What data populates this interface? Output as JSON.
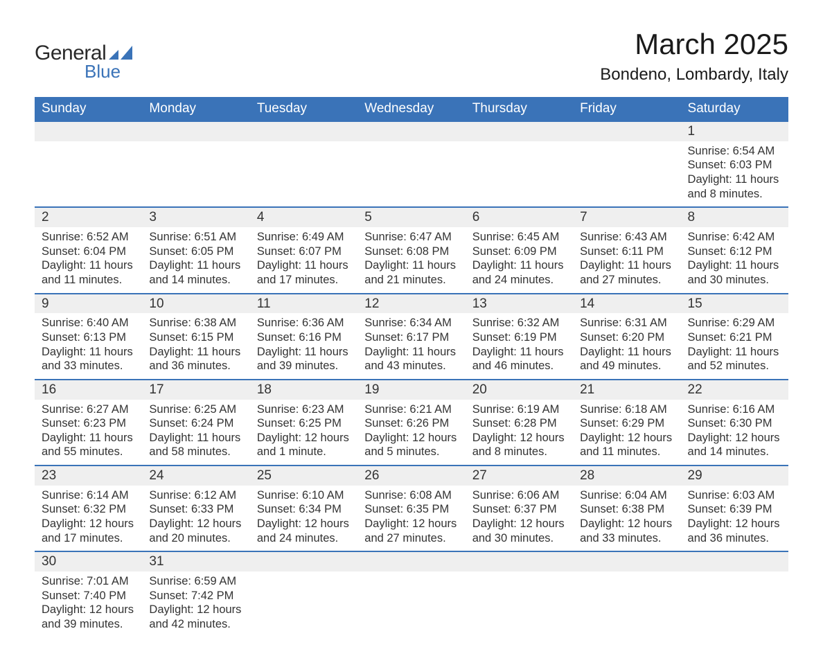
{
  "brand": {
    "word1": "General",
    "word2": "Blue",
    "color": "#3a73b8"
  },
  "title": "March 2025",
  "location": "Bondeno, Lombardy, Italy",
  "weekday_labels": [
    "Sunday",
    "Monday",
    "Tuesday",
    "Wednesday",
    "Thursday",
    "Friday",
    "Saturday"
  ],
  "style": {
    "header_bg": "#3a73b8",
    "header_fg": "#ffffff",
    "daynum_bg": "#efefef",
    "row_divider": "#3a73b8",
    "body_text": "#333333",
    "title_fontsize": 42,
    "location_fontsize": 24,
    "weekday_fontsize": 19,
    "cell_fontsize": 16.5
  },
  "weeks": [
    [
      null,
      null,
      null,
      null,
      null,
      null,
      {
        "n": "1",
        "sr": "Sunrise: 6:54 AM",
        "ss": "Sunset: 6:03 PM",
        "d1": "Daylight: 11 hours",
        "d2": "and 8 minutes."
      }
    ],
    [
      {
        "n": "2",
        "sr": "Sunrise: 6:52 AM",
        "ss": "Sunset: 6:04 PM",
        "d1": "Daylight: 11 hours",
        "d2": "and 11 minutes."
      },
      {
        "n": "3",
        "sr": "Sunrise: 6:51 AM",
        "ss": "Sunset: 6:05 PM",
        "d1": "Daylight: 11 hours",
        "d2": "and 14 minutes."
      },
      {
        "n": "4",
        "sr": "Sunrise: 6:49 AM",
        "ss": "Sunset: 6:07 PM",
        "d1": "Daylight: 11 hours",
        "d2": "and 17 minutes."
      },
      {
        "n": "5",
        "sr": "Sunrise: 6:47 AM",
        "ss": "Sunset: 6:08 PM",
        "d1": "Daylight: 11 hours",
        "d2": "and 21 minutes."
      },
      {
        "n": "6",
        "sr": "Sunrise: 6:45 AM",
        "ss": "Sunset: 6:09 PM",
        "d1": "Daylight: 11 hours",
        "d2": "and 24 minutes."
      },
      {
        "n": "7",
        "sr": "Sunrise: 6:43 AM",
        "ss": "Sunset: 6:11 PM",
        "d1": "Daylight: 11 hours",
        "d2": "and 27 minutes."
      },
      {
        "n": "8",
        "sr": "Sunrise: 6:42 AM",
        "ss": "Sunset: 6:12 PM",
        "d1": "Daylight: 11 hours",
        "d2": "and 30 minutes."
      }
    ],
    [
      {
        "n": "9",
        "sr": "Sunrise: 6:40 AM",
        "ss": "Sunset: 6:13 PM",
        "d1": "Daylight: 11 hours",
        "d2": "and 33 minutes."
      },
      {
        "n": "10",
        "sr": "Sunrise: 6:38 AM",
        "ss": "Sunset: 6:15 PM",
        "d1": "Daylight: 11 hours",
        "d2": "and 36 minutes."
      },
      {
        "n": "11",
        "sr": "Sunrise: 6:36 AM",
        "ss": "Sunset: 6:16 PM",
        "d1": "Daylight: 11 hours",
        "d2": "and 39 minutes."
      },
      {
        "n": "12",
        "sr": "Sunrise: 6:34 AM",
        "ss": "Sunset: 6:17 PM",
        "d1": "Daylight: 11 hours",
        "d2": "and 43 minutes."
      },
      {
        "n": "13",
        "sr": "Sunrise: 6:32 AM",
        "ss": "Sunset: 6:19 PM",
        "d1": "Daylight: 11 hours",
        "d2": "and 46 minutes."
      },
      {
        "n": "14",
        "sr": "Sunrise: 6:31 AM",
        "ss": "Sunset: 6:20 PM",
        "d1": "Daylight: 11 hours",
        "d2": "and 49 minutes."
      },
      {
        "n": "15",
        "sr": "Sunrise: 6:29 AM",
        "ss": "Sunset: 6:21 PM",
        "d1": "Daylight: 11 hours",
        "d2": "and 52 minutes."
      }
    ],
    [
      {
        "n": "16",
        "sr": "Sunrise: 6:27 AM",
        "ss": "Sunset: 6:23 PM",
        "d1": "Daylight: 11 hours",
        "d2": "and 55 minutes."
      },
      {
        "n": "17",
        "sr": "Sunrise: 6:25 AM",
        "ss": "Sunset: 6:24 PM",
        "d1": "Daylight: 11 hours",
        "d2": "and 58 minutes."
      },
      {
        "n": "18",
        "sr": "Sunrise: 6:23 AM",
        "ss": "Sunset: 6:25 PM",
        "d1": "Daylight: 12 hours",
        "d2": "and 1 minute."
      },
      {
        "n": "19",
        "sr": "Sunrise: 6:21 AM",
        "ss": "Sunset: 6:26 PM",
        "d1": "Daylight: 12 hours",
        "d2": "and 5 minutes."
      },
      {
        "n": "20",
        "sr": "Sunrise: 6:19 AM",
        "ss": "Sunset: 6:28 PM",
        "d1": "Daylight: 12 hours",
        "d2": "and 8 minutes."
      },
      {
        "n": "21",
        "sr": "Sunrise: 6:18 AM",
        "ss": "Sunset: 6:29 PM",
        "d1": "Daylight: 12 hours",
        "d2": "and 11 minutes."
      },
      {
        "n": "22",
        "sr": "Sunrise: 6:16 AM",
        "ss": "Sunset: 6:30 PM",
        "d1": "Daylight: 12 hours",
        "d2": "and 14 minutes."
      }
    ],
    [
      {
        "n": "23",
        "sr": "Sunrise: 6:14 AM",
        "ss": "Sunset: 6:32 PM",
        "d1": "Daylight: 12 hours",
        "d2": "and 17 minutes."
      },
      {
        "n": "24",
        "sr": "Sunrise: 6:12 AM",
        "ss": "Sunset: 6:33 PM",
        "d1": "Daylight: 12 hours",
        "d2": "and 20 minutes."
      },
      {
        "n": "25",
        "sr": "Sunrise: 6:10 AM",
        "ss": "Sunset: 6:34 PM",
        "d1": "Daylight: 12 hours",
        "d2": "and 24 minutes."
      },
      {
        "n": "26",
        "sr": "Sunrise: 6:08 AM",
        "ss": "Sunset: 6:35 PM",
        "d1": "Daylight: 12 hours",
        "d2": "and 27 minutes."
      },
      {
        "n": "27",
        "sr": "Sunrise: 6:06 AM",
        "ss": "Sunset: 6:37 PM",
        "d1": "Daylight: 12 hours",
        "d2": "and 30 minutes."
      },
      {
        "n": "28",
        "sr": "Sunrise: 6:04 AM",
        "ss": "Sunset: 6:38 PM",
        "d1": "Daylight: 12 hours",
        "d2": "and 33 minutes."
      },
      {
        "n": "29",
        "sr": "Sunrise: 6:03 AM",
        "ss": "Sunset: 6:39 PM",
        "d1": "Daylight: 12 hours",
        "d2": "and 36 minutes."
      }
    ],
    [
      {
        "n": "30",
        "sr": "Sunrise: 7:01 AM",
        "ss": "Sunset: 7:40 PM",
        "d1": "Daylight: 12 hours",
        "d2": "and 39 minutes."
      },
      {
        "n": "31",
        "sr": "Sunrise: 6:59 AM",
        "ss": "Sunset: 7:42 PM",
        "d1": "Daylight: 12 hours",
        "d2": "and 42 minutes."
      },
      null,
      null,
      null,
      null,
      null
    ]
  ]
}
